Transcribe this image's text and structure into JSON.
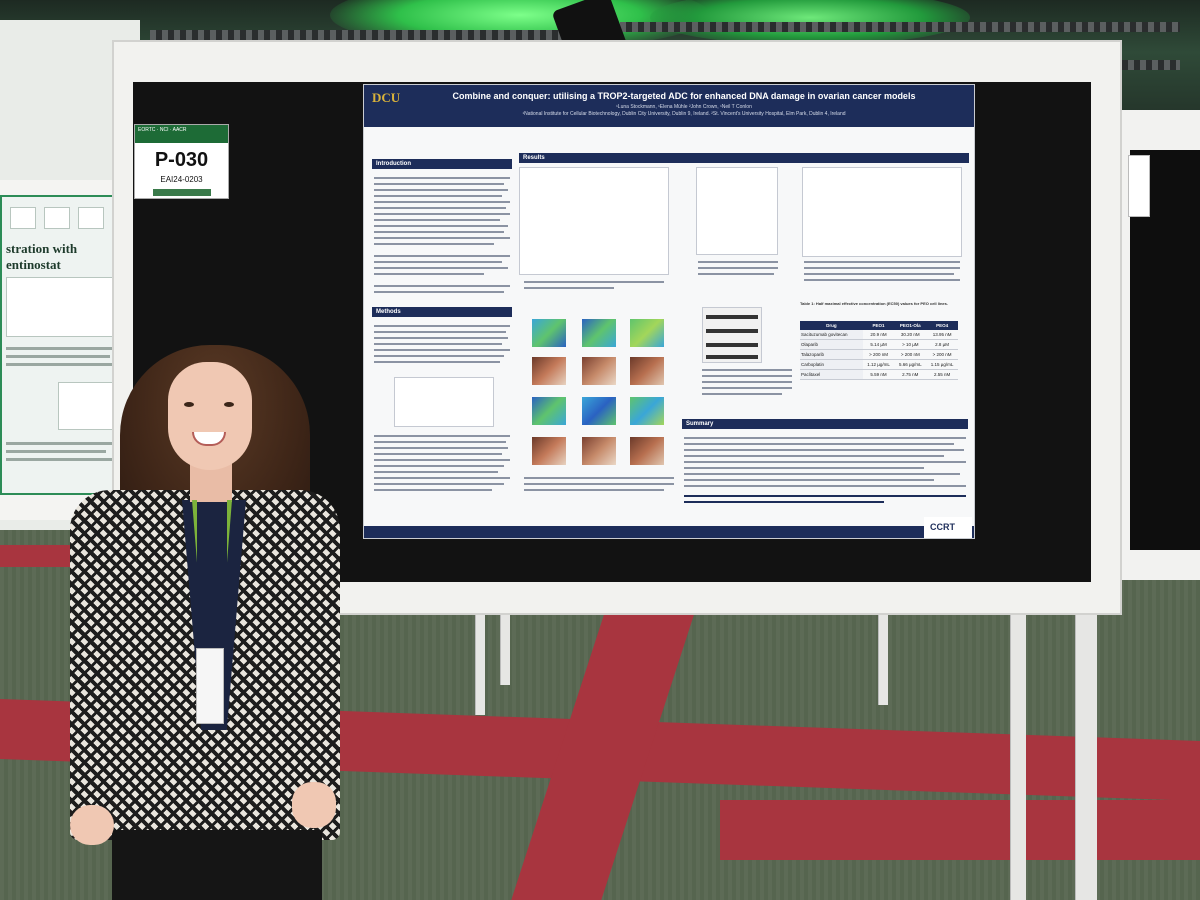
{
  "sign": {
    "banner": "EORTC · NCI · AACR",
    "code": "P-030",
    "abstract_id": "EAI24-0203"
  },
  "left_poster": {
    "title": "stration with entinostat"
  },
  "poster": {
    "logo": "DCU",
    "title": "Combine and conquer: utilising a TROP2-targeted ADC for enhanced DNA damage in ovarian cancer models",
    "authors": "¹Luna Stockmann, ¹Elena Mühle ²John Crown, ¹Neil T Conlon",
    "affiliations": "¹National Institute for Cellular Biotechnology, Dublin City University, Dublin 9, Ireland. ²St. Vincent's University Hospital, Elm Park, Dublin 4, Ireland",
    "sections": {
      "introduction": "Introduction",
      "methods": "Methods",
      "results": "Results",
      "summary": "Summary"
    },
    "table": {
      "caption": "Table 1: Half maximal effective concentration (EC50) values for PEO cell lines.",
      "headers": [
        "Drug",
        "PEO1",
        "PEO1-Ola",
        "PEO4"
      ],
      "rows": [
        [
          "Sacituzumab govitecan",
          "20.9 nM",
          "30.20 nM",
          "13.95 nM"
        ],
        [
          "Olaparib",
          "5.14 µM",
          "> 10 µM",
          "2.8 µM"
        ],
        [
          "Talazoparib",
          "> 200 nM",
          "> 200 nM",
          "> 200 nM"
        ],
        [
          "Carboplatin",
          "1.12 µg/mL",
          "5.66 µg/mL",
          "1.15 µg/mL"
        ],
        [
          "Paclitaxel",
          "5.59 nM",
          "2.75 nM",
          "2.55 nM"
        ]
      ]
    },
    "logo_right": "CCRT"
  }
}
